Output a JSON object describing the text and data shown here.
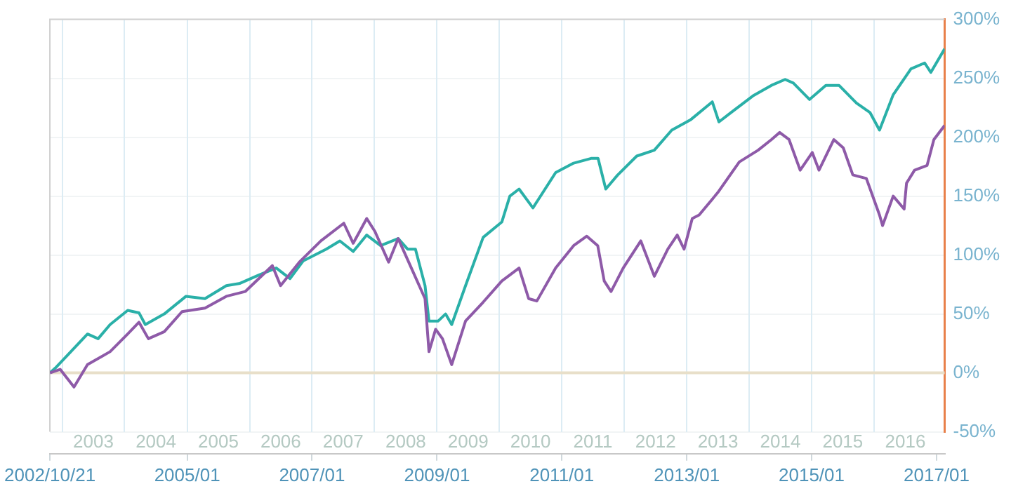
{
  "chart_data": {
    "type": "line",
    "xlim": [
      "2002-10-21",
      "2017-02-17"
    ],
    "xticks": [
      {
        "value": "2002-10-21",
        "label": "2002/10/21"
      },
      {
        "value": "2005-01-01",
        "label": "2005/01"
      },
      {
        "value": "2007-01-01",
        "label": "2007/01"
      },
      {
        "value": "2009-01-01",
        "label": "2009/01"
      },
      {
        "value": "2011-01-01",
        "label": "2011/01"
      },
      {
        "value": "2013-01-01",
        "label": "2013/01"
      },
      {
        "value": "2015-01-01",
        "label": "2015/01"
      },
      {
        "value": "2017-01-01",
        "label": "2017/01"
      }
    ],
    "x2lim": [
      "2002-10-21",
      "2017-02-17"
    ],
    "x2ticks": [
      {
        "value": "2003-01-01",
        "label": null
      },
      {
        "value": "2003-07-02",
        "label": "2003"
      },
      {
        "value": "2004-01-01",
        "label": null
      },
      {
        "value": "2004-07-02",
        "label": "2004"
      },
      {
        "value": "2005-01-01",
        "label": null
      },
      {
        "value": "2005-07-02",
        "label": "2005"
      },
      {
        "value": "2006-01-01",
        "label": null
      },
      {
        "value": "2006-07-02",
        "label": "2006"
      },
      {
        "value": "2007-01-01",
        "label": null
      },
      {
        "value": "2007-07-02",
        "label": "2007"
      },
      {
        "value": "2008-01-01",
        "label": null
      },
      {
        "value": "2008-07-02",
        "label": "2008"
      },
      {
        "value": "2009-01-01",
        "label": null
      },
      {
        "value": "2009-07-02",
        "label": "2009"
      },
      {
        "value": "2010-01-01",
        "label": null
      },
      {
        "value": "2010-07-02",
        "label": "2010"
      },
      {
        "value": "2011-01-01",
        "label": null
      },
      {
        "value": "2011-07-02",
        "label": "2011"
      },
      {
        "value": "2012-01-01",
        "label": null
      },
      {
        "value": "2012-07-02",
        "label": "2012"
      },
      {
        "value": "2013-01-01",
        "label": null
      },
      {
        "value": "2013-07-02",
        "label": "2013"
      },
      {
        "value": "2014-01-01",
        "label": null
      },
      {
        "value": "2014-07-02",
        "label": "2014"
      },
      {
        "value": "2015-01-01",
        "label": null
      },
      {
        "value": "2015-07-02",
        "label": "2015"
      },
      {
        "value": "2016-01-01",
        "label": null
      },
      {
        "value": "2016-07-02",
        "label": "2016"
      }
    ],
    "ylim": [
      -50,
      300
    ],
    "yticks": [
      {
        "value": -50,
        "label": "-50%"
      },
      {
        "value": 0,
        "label": "0%"
      },
      {
        "value": 50,
        "label": "50%"
      },
      {
        "value": 100,
        "label": "100%"
      },
      {
        "value": 150,
        "label": "150%"
      },
      {
        "value": 200,
        "label": "200%"
      },
      {
        "value": 250,
        "label": "250%"
      },
      {
        "value": 300,
        "label": "300%"
      }
    ],
    "grid": true,
    "legend": false,
    "ref_lines": [
      {
        "axis": "y",
        "value": 0,
        "color": "#e8dfc9"
      }
    ],
    "series": [
      {
        "color": "#8e5aa8",
        "x": [
          "2002-10-21",
          "2002-12-20",
          "2003-03-11",
          "2003-05-29",
          "2003-10-08",
          "2004-01-19",
          "2004-03-25",
          "2004-05-19",
          "2004-08-20",
          "2004-12-02",
          "2005-04-15",
          "2005-08-18",
          "2005-12-06",
          "2006-05-14",
          "2006-07-01",
          "2006-10-19",
          "2007-02-22",
          "2007-07-06",
          "2007-08-30",
          "2007-11-17",
          "2008-01-04",
          "2008-03-24",
          "2008-05-19",
          "2008-08-04",
          "2008-10-23",
          "2008-11-15",
          "2008-12-24",
          "2009-02-02",
          "2009-03-28",
          "2009-06-17",
          "2009-09-28",
          "2010-01-15",
          "2010-04-26",
          "2010-06-21",
          "2010-08-08",
          "2010-11-26",
          "2011-03-11",
          "2011-05-27",
          "2011-07-30",
          "2011-09-06",
          "2011-10-16",
          "2011-12-26",
          "2012-04-07",
          "2012-06-25",
          "2012-09-12",
          "2012-11-06",
          "2012-12-16",
          "2013-02-02",
          "2013-03-14",
          "2013-07-01",
          "2013-11-04",
          "2014-02-22",
          "2014-05-11",
          "2014-06-28",
          "2014-08-22",
          "2014-10-26",
          "2015-01-05",
          "2015-02-13",
          "2015-05-11",
          "2015-07-05",
          "2015-08-30",
          "2015-11-17",
          "2016-02-02",
          "2016-02-20",
          "2016-04-22",
          "2016-06-25",
          "2016-07-09",
          "2016-08-25",
          "2016-11-06",
          "2016-12-16",
          "2017-02-17"
        ],
        "values": [
          0,
          3,
          -12,
          7,
          18,
          33,
          43,
          29,
          35,
          52,
          55,
          65,
          69,
          91,
          74,
          94,
          112,
          127,
          110,
          131,
          120,
          94,
          114,
          89,
          63,
          18,
          37,
          29,
          7,
          44,
          60,
          78,
          89,
          63,
          61,
          89,
          108,
          116,
          108,
          78,
          69,
          89,
          112,
          82,
          105,
          117,
          105,
          131,
          134,
          153,
          179,
          189,
          198,
          204,
          198,
          172,
          187,
          172,
          198,
          191,
          168,
          165,
          134,
          125,
          150,
          139,
          161,
          172,
          176,
          198,
          210
        ]
      },
      {
        "color": "#2ab0a8",
        "x": [
          "2002-10-21",
          "2002-11-28",
          "2003-05-29",
          "2003-07-30",
          "2003-10-08",
          "2004-01-19",
          "2004-03-25",
          "2004-05-01",
          "2004-08-20",
          "2004-12-25",
          "2005-04-15",
          "2005-08-18",
          "2005-11-06",
          "2006-02-24",
          "2006-06-06",
          "2006-08-25",
          "2006-11-10",
          "2007-03-25",
          "2007-06-13",
          "2007-08-30",
          "2007-11-17",
          "2008-02-06",
          "2008-05-19",
          "2008-07-13",
          "2008-08-28",
          "2008-10-23",
          "2008-11-15",
          "2009-01-08",
          "2009-02-20",
          "2009-03-28",
          "2009-06-17",
          "2009-09-28",
          "2010-01-15",
          "2010-03-03",
          "2010-04-26",
          "2010-07-16",
          "2010-11-26",
          "2011-03-11",
          "2011-06-21",
          "2011-08-01",
          "2011-09-15",
          "2011-11-24",
          "2012-03-14",
          "2012-06-25",
          "2012-10-05",
          "2013-01-25",
          "2013-05-30",
          "2013-07-08",
          "2013-09-17",
          "2014-01-22",
          "2014-05-11",
          "2014-07-30",
          "2014-09-16",
          "2014-12-20",
          "2015-03-25",
          "2015-06-10",
          "2015-09-20",
          "2015-12-08",
          "2016-02-02",
          "2016-04-22",
          "2016-08-04",
          "2016-10-23",
          "2016-11-28",
          "2017-02-17"
        ],
        "values": [
          0,
          5,
          33,
          29,
          41,
          53,
          51,
          41,
          50,
          65,
          63,
          74,
          76,
          83,
          89,
          80,
          95,
          105,
          112,
          103,
          117,
          108,
          114,
          105,
          105,
          74,
          44,
          44,
          50,
          41,
          74,
          115,
          128,
          150,
          156,
          140,
          170,
          178,
          182,
          182,
          156,
          168,
          184,
          189,
          206,
          215,
          230,
          213,
          221,
          235,
          244,
          249,
          246,
          232,
          244,
          244,
          229,
          221,
          206,
          236,
          258,
          263,
          255,
          275
        ]
      }
    ]
  }
}
